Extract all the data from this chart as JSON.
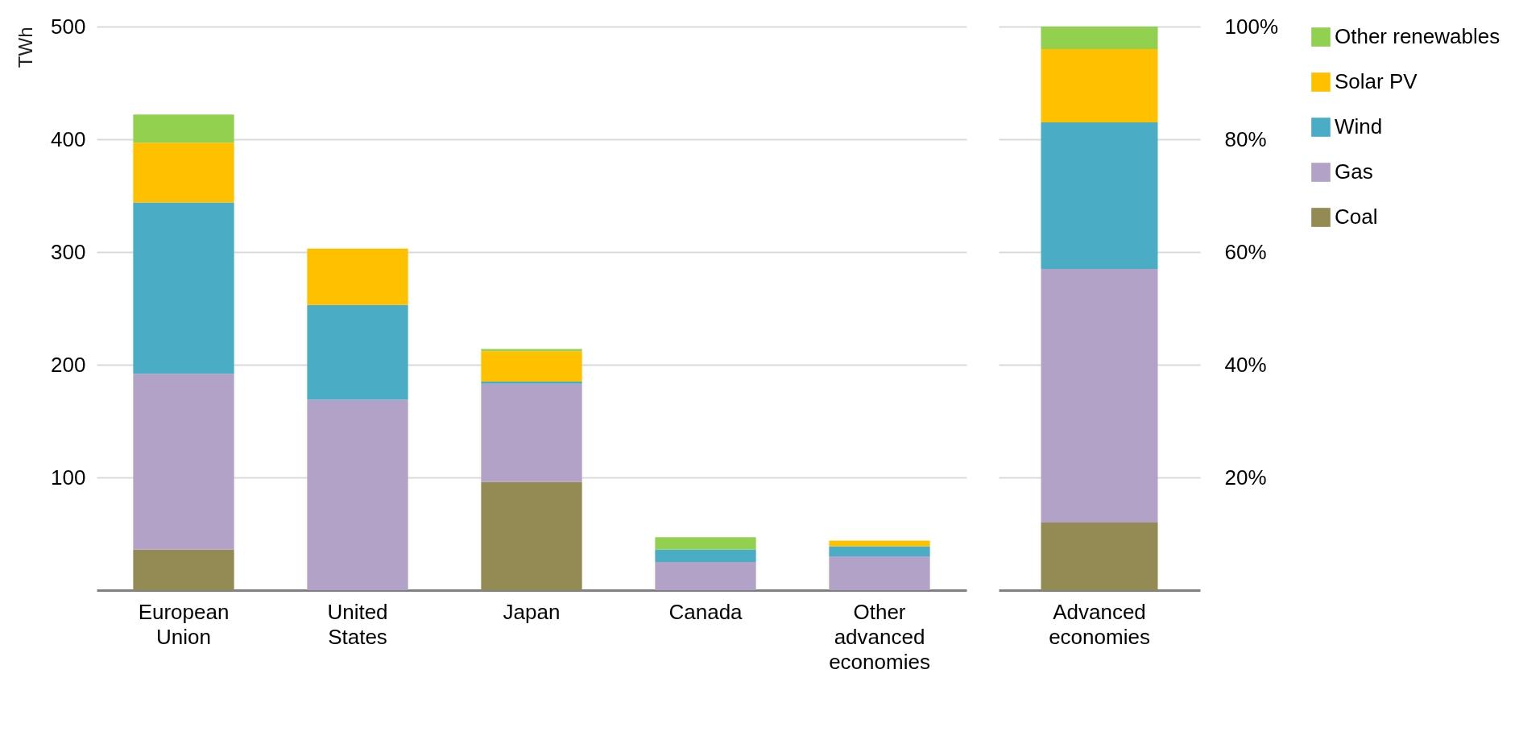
{
  "chart_data": [
    {
      "type": "bar",
      "stacked": true,
      "ylabel": "TWh",
      "categories": [
        "European Union",
        "United States",
        "Japan",
        "Canada",
        "Other advanced economies"
      ],
      "ylim": [
        0,
        500
      ],
      "yticks": [
        100,
        200,
        300,
        400,
        500
      ],
      "grid": "y",
      "series": [
        {
          "color": "#948a54",
          "values": [
            36,
            0,
            96,
            0,
            0
          ]
        },
        {
          "color": "#b3a2c7",
          "values": [
            156,
            169,
            87,
            25,
            30
          ]
        },
        {
          "color": "#4bacc6",
          "values": [
            152,
            84,
            2,
            11,
            9
          ]
        },
        {
          "color": "#ffc000",
          "values": [
            53,
            50,
            27,
            0,
            5
          ]
        },
        {
          "color": "#92d050",
          "values": [
            25,
            0,
            2,
            11,
            0
          ]
        }
      ]
    },
    {
      "type": "bar",
      "stacked": true,
      "categories": [
        "Advanced economies"
      ],
      "y2lim": [
        0,
        100
      ],
      "y2ticks": [
        {
          "value": 20,
          "label": "20%"
        },
        {
          "value": 40,
          "label": "40%"
        },
        {
          "value": 60,
          "label": "60%"
        },
        {
          "value": 80,
          "label": "80%"
        },
        {
          "value": 100,
          "label": "100%"
        }
      ],
      "grid": "y",
      "legend": "right",
      "series": [
        {
          "name": "Coal",
          "color": "#948a54",
          "axis": "y2",
          "values": [
            12
          ]
        },
        {
          "name": "Gas",
          "color": "#b3a2c7",
          "axis": "y2",
          "values": [
            45
          ]
        },
        {
          "name": "Wind",
          "color": "#4bacc6",
          "axis": "y2",
          "values": [
            26
          ]
        },
        {
          "name": "Solar PV",
          "color": "#ffc000",
          "axis": "y2",
          "values": [
            13
          ]
        },
        {
          "name": "Other renewables",
          "color": "#92d050",
          "axis": "y2",
          "values": [
            4
          ]
        }
      ]
    }
  ]
}
